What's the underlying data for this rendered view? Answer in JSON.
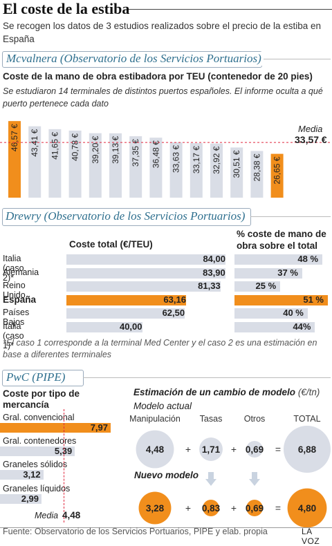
{
  "header": {
    "title": "El coste de la estiba",
    "subtitle": "Se recogen los datos de 3 estudios realizados sobre el precio de la estiba en España"
  },
  "sections": {
    "s1": {
      "source_label": "Mcvalnera (Observatorio de los Servicios Portuarios)",
      "chart_title": "Coste de la mano de obra estibadora por TEU (contenedor de 20 pies)",
      "note": "Se estudiaron 14 terminales de distintos puertos españoles. El informe oculta a qué puerto pertenece cada dato",
      "media_label": "Media",
      "media_value": "33,57 €"
    },
    "s2": {
      "source_label": "Drewry (Observatorio de los Servicios Portuarios)",
      "col1_header": "Coste total (€/TEU)",
      "col2_header": "% coste de mano de obra sobre el total",
      "footnote": "*El caso 1 corresponde a la terminal Med Center y el caso 2 es una estimación en base a diferentes terminales"
    },
    "s3": {
      "source_label": "PwC (PIPE)",
      "left_title": "Coste por tipo de mercancía",
      "media_label": "Media",
      "media_value": "4,48",
      "right_title": "Estimación de un cambio de modelo",
      "right_unit": "(€/tn)",
      "current_label": "Modelo actual",
      "new_label": "Nuevo modelo",
      "col_labels": [
        "Manipulación",
        "Tasas",
        "Otros",
        "TOTAL"
      ],
      "ops": [
        "+",
        "+",
        "="
      ],
      "current_values": [
        "4,48",
        "1,71",
        "0,69",
        "6,88"
      ],
      "new_values": [
        "3,28",
        "0,83",
        "0,69",
        "4,80"
      ]
    }
  },
  "footer": {
    "source": "Fuente: Observatorio de los Servicios Portuarios, PIPE y elab. propia",
    "brand": "LA VOZ"
  },
  "colors": {
    "orange": "#f18e1c",
    "grey_bar": "#d9dde6",
    "section_blue": "#2e6f8e",
    "media_line": "#e0263c"
  },
  "chart_data": [
    {
      "type": "bar",
      "title": "Coste de la mano de obra estibadora por TEU (contenedor de 20 pies)",
      "values": [
        46.57,
        43.41,
        41.65,
        40.78,
        39.2,
        39.13,
        37.35,
        36.48,
        33.63,
        33.17,
        32.92,
        30.51,
        28.38,
        26.65
      ],
      "labels": [
        "46,57 €",
        "43,41 €",
        "41,65 €",
        "40,78 €",
        "39,20 €",
        "39,13 €",
        "37,35 €",
        "36,48 €",
        "33,63 €",
        "33,17 €",
        "32,92 €",
        "30,51 €",
        "28,38 €",
        "26,65 €"
      ],
      "highlight": [
        0,
        13
      ],
      "reference_line": 33.57
    },
    {
      "type": "bar",
      "orientation": "horizontal",
      "title": "Coste total (€/TEU)",
      "categories": [
        "Italia (caso 2)*",
        "Alemania",
        "Reino Unido",
        "España",
        "Países Bajos",
        "Italia (caso 1)*"
      ],
      "values": [
        84.0,
        83.9,
        81.33,
        63.16,
        62.5,
        40.0
      ],
      "labels": [
        "84,00",
        "83,90",
        "81,33",
        "63,16",
        "62,50",
        "40,00"
      ],
      "highlight": [
        3
      ]
    },
    {
      "type": "bar",
      "orientation": "horizontal",
      "title": "% coste de mano de obra sobre el total",
      "categories": [
        "Italia (caso 2)*",
        "Alemania",
        "Reino Unido",
        "España",
        "Países Bajos",
        "Italia (caso 1)*"
      ],
      "values": [
        48,
        37,
        25,
        51,
        40,
        44
      ],
      "labels": [
        "48 %",
        "37 %",
        "25 %",
        "51 %",
        "40 %",
        "44%"
      ],
      "highlight": [
        3
      ]
    },
    {
      "type": "bar",
      "orientation": "horizontal",
      "title": "Coste por tipo de mercancía",
      "categories": [
        "Gral. convencional",
        "Gral. contenedores",
        "Graneles sólidos",
        "Graneles líquidos"
      ],
      "values": [
        7.97,
        5.39,
        3.12,
        2.99
      ],
      "labels": [
        "7,97",
        "5,39",
        "3,12",
        "2,99"
      ],
      "highlight": [
        0
      ],
      "reference_line": 4.48
    }
  ]
}
